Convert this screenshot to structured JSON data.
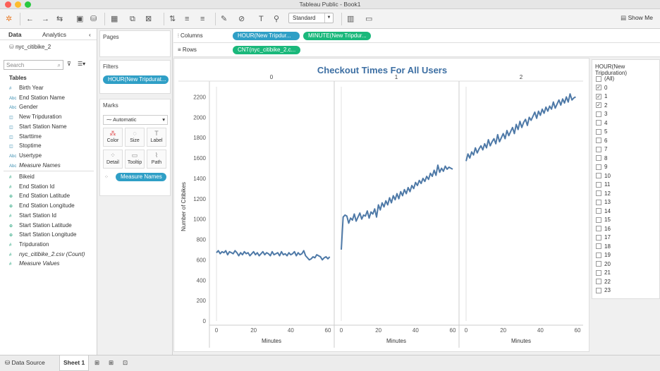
{
  "window": {
    "title": "Tableau Public - Book1"
  },
  "toolbar": {
    "mode": "Standard",
    "show_me": "Show Me"
  },
  "left": {
    "tabs": [
      "Data",
      "Analytics"
    ],
    "datasource": "nyc_citibike_2",
    "search_placeholder": "Search",
    "tables_header": "Tables",
    "dimensions": [
      {
        "icon": "#",
        "label": "Birth Year"
      },
      {
        "icon": "Abc",
        "label": "End Station Name"
      },
      {
        "icon": "Abc",
        "label": "Gender"
      },
      {
        "icon": "cal",
        "label": "New Tripduration"
      },
      {
        "icon": "cal",
        "label": "Start Station Name"
      },
      {
        "icon": "cal",
        "label": "Starttime"
      },
      {
        "icon": "cal",
        "label": "Stoptime"
      },
      {
        "icon": "Abc",
        "label": "Usertype"
      },
      {
        "icon": "Abc",
        "label": "Measure Names",
        "italic": true
      }
    ],
    "measures": [
      {
        "icon": "#",
        "label": "Bikeid"
      },
      {
        "icon": "#",
        "label": "End Station Id"
      },
      {
        "icon": "geo",
        "label": "End Station Latitude"
      },
      {
        "icon": "geo",
        "label": "End Station Longitude"
      },
      {
        "icon": "#",
        "label": "Start Station Id"
      },
      {
        "icon": "geo",
        "label": "Start Station Latitude"
      },
      {
        "icon": "geo",
        "label": "Start Station Longitude"
      },
      {
        "icon": "#",
        "label": "Tripduration"
      },
      {
        "icon": "#",
        "label": "nyc_citibike_2.csv (Count)",
        "italic": true
      },
      {
        "icon": "#",
        "label": "Measure Values",
        "italic": true
      }
    ]
  },
  "cards": {
    "pages": "Pages",
    "filters": "Filters",
    "filter_pill": "HOUR(New Tripdurat...",
    "marks": "Marks",
    "mark_type": "Automatic",
    "mark_buttons": [
      "Color",
      "Size",
      "Label",
      "Detail",
      "Tooltip",
      "Path"
    ],
    "measure_names_pill": "Measure Names"
  },
  "shelves": {
    "columns_label": "Columns",
    "rows_label": "Rows",
    "col_pill1": "HOUR(New Tripdur...",
    "col_pill2": "MINUTE(New Tripdur...",
    "row_pill": "CNT(nyc_citibike_2.c..."
  },
  "legend": {
    "title": "HOUR(New Tripduration)",
    "items": [
      "(All)",
      "0",
      "1",
      "2",
      "3",
      "4",
      "5",
      "6",
      "7",
      "8",
      "9",
      "10",
      "11",
      "12",
      "13",
      "14",
      "15",
      "16",
      "17",
      "18",
      "19",
      "20",
      "21",
      "22",
      "23"
    ],
    "checked": [
      "0",
      "1",
      "2"
    ]
  },
  "bottom": {
    "data_source": "Data Source",
    "sheet": "Sheet 1"
  },
  "chart_data": {
    "type": "line",
    "title": "Checkout Times For All Users",
    "ylabel": "Number of Citibikes",
    "xlabel": "Minutes",
    "panels": [
      "0",
      "1",
      "2"
    ],
    "ylim": [
      0,
      2300
    ],
    "yticks": [
      0,
      200,
      400,
      600,
      800,
      1000,
      1200,
      1400,
      1600,
      1800,
      2000,
      2200
    ],
    "xticks": [
      0,
      20,
      40,
      60
    ],
    "line_color": "#4e79a7",
    "series": [
      {
        "name": "0",
        "values": [
          670,
          690,
          660,
          680,
          670,
          690,
          650,
          680,
          670,
          660,
          690,
          670,
          640,
          670,
          650,
          680,
          660,
          670,
          640,
          660,
          680,
          650,
          670,
          640,
          660,
          680,
          650,
          670,
          660,
          640,
          680,
          650,
          660,
          670,
          640,
          680,
          650,
          660,
          640,
          670,
          650,
          660,
          680,
          640,
          670,
          650,
          660,
          690,
          640,
          620,
          600,
          610,
          630,
          620,
          650,
          640,
          630,
          600,
          620,
          630,
          610,
          630
        ]
      },
      {
        "name": "1",
        "values": [
          700,
          1020,
          1040,
          1030,
          960,
          1010,
          990,
          1050,
          980,
          1020,
          1060,
          1000,
          1040,
          1030,
          1080,
          1010,
          1070,
          1050,
          1100,
          1020,
          1140,
          1090,
          1160,
          1120,
          1180,
          1140,
          1210,
          1160,
          1230,
          1190,
          1250,
          1200,
          1270,
          1230,
          1290,
          1250,
          1310,
          1270,
          1330,
          1300,
          1360,
          1330,
          1380,
          1350,
          1400,
          1370,
          1420,
          1390,
          1450,
          1420,
          1480,
          1430,
          1530,
          1460,
          1500,
          1470,
          1520,
          1490,
          1510,
          1500,
          1490
        ]
      },
      {
        "name": "2",
        "values": [
          1570,
          1640,
          1600,
          1660,
          1630,
          1700,
          1650,
          1690,
          1720,
          1680,
          1740,
          1700,
          1780,
          1720,
          1760,
          1790,
          1740,
          1830,
          1760,
          1800,
          1840,
          1790,
          1870,
          1820,
          1860,
          1900,
          1840,
          1930,
          1880,
          1960,
          1900,
          1950,
          1980,
          1920,
          2000,
          1970,
          2010,
          2050,
          1990,
          2060,
          2020,
          2080,
          2040,
          2100,
          2060,
          2110,
          2080,
          2150,
          2090,
          2130,
          2170,
          2120,
          2180,
          2140,
          2200,
          2150,
          2230,
          2170,
          2190,
          2200
        ]
      }
    ]
  }
}
